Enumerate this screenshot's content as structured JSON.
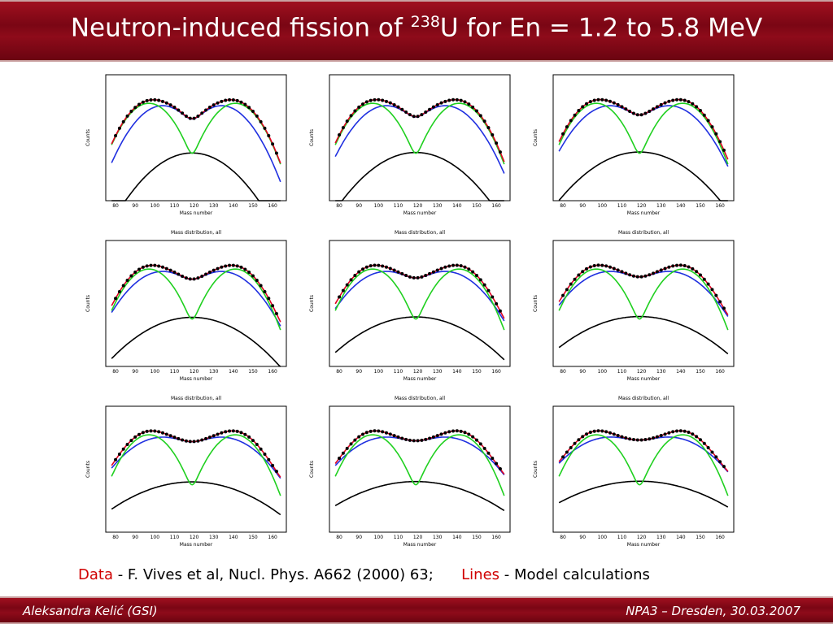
{
  "header": {
    "title_before": "Neutron-induced fission of ",
    "title_sup": "238",
    "title_after": "U for En = 1.2 to 5.8 MeV"
  },
  "figure": {
    "panel_title": "Mass distribution, all",
    "x_label": "Mass number",
    "y_label": "Counts",
    "x_ticks": [
      "80",
      "90",
      "100",
      "110",
      "120",
      "130",
      "140",
      "150",
      "160"
    ]
  },
  "caption": {
    "data_word": "Data",
    "data_text": " - F. Vives et al, Nucl. Phys. A662 (2000) 63;",
    "lines_word": "Lines",
    "lines_text": " - Model calculations"
  },
  "footer": {
    "left": "Aleksandra Kelić (GSI)",
    "right": "NPA3 – Dresden, 30.03.2007"
  }
}
